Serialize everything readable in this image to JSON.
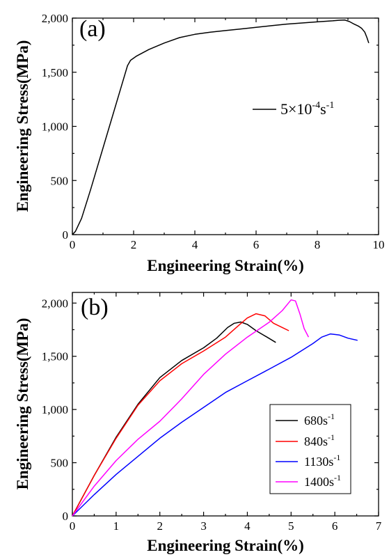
{
  "chart_data": [
    {
      "type": "line",
      "panel_label": "(a)",
      "xlabel": "Engineering Strain(%)",
      "ylabel": "Engineering Stress(MPa)",
      "xlim": [
        0,
        10
      ],
      "ylim": [
        0,
        2000
      ],
      "xticks": [
        "0",
        "2",
        "4",
        "6",
        "8",
        "10"
      ],
      "yticks": [
        "0",
        "500",
        "1,000",
        "1,500",
        "2,000"
      ],
      "legend_position": "middle-right",
      "grid": false,
      "series": [
        {
          "name_main": "5×10",
          "name_sup": "-4",
          "name_tail": "s",
          "name_sup2": "-1",
          "color": "#000000",
          "x": [
            0,
            0.1,
            0.3,
            0.6,
            1.0,
            1.4,
            1.8,
            1.9,
            2.1,
            2.5,
            3.0,
            3.5,
            4.0,
            4.5,
            5.0,
            5.5,
            6.0,
            6.5,
            7.0,
            7.5,
            8.0,
            8.5,
            8.7,
            8.9,
            9.05,
            9.2,
            9.35,
            9.45,
            9.55,
            9.62,
            9.68
          ],
          "y": [
            0,
            30,
            150,
            420,
            800,
            1180,
            1560,
            1610,
            1650,
            1710,
            1770,
            1820,
            1850,
            1870,
            1885,
            1900,
            1915,
            1930,
            1945,
            1955,
            1965,
            1975,
            1980,
            1982,
            1968,
            1945,
            1925,
            1905,
            1870,
            1820,
            1770
          ]
        }
      ]
    },
    {
      "type": "line",
      "panel_label": "(b)",
      "xlabel": "Engineering Strain(%)",
      "ylabel": "Engineering Stress(MPa)",
      "xlim": [
        0,
        7
      ],
      "ylim": [
        0,
        2100
      ],
      "xticks": [
        "0",
        "1",
        "2",
        "3",
        "4",
        "5",
        "6",
        "7"
      ],
      "yticks": [
        "0",
        "500",
        "1,000",
        "1,500",
        "2,000"
      ],
      "legend_position": "bottom-right",
      "grid": false,
      "series": [
        {
          "name_main": "680s",
          "name_sup": "-1",
          "color": "#000000",
          "x": [
            0,
            0.5,
            1.0,
            1.5,
            2.0,
            2.5,
            3.0,
            3.3,
            3.55,
            3.7,
            3.85,
            4.0,
            4.2,
            4.45,
            4.65
          ],
          "y": [
            0,
            380,
            740,
            1050,
            1300,
            1460,
            1580,
            1670,
            1770,
            1810,
            1822,
            1800,
            1740,
            1680,
            1630
          ]
        },
        {
          "name_main": "840s",
          "name_sup": "-1",
          "color": "#ff0000",
          "x": [
            0,
            0.5,
            1.0,
            1.5,
            2.0,
            2.5,
            3.0,
            3.5,
            3.8,
            4.0,
            4.2,
            4.4,
            4.6,
            4.8,
            4.95
          ],
          "y": [
            0,
            380,
            730,
            1040,
            1270,
            1430,
            1550,
            1680,
            1790,
            1860,
            1900,
            1880,
            1810,
            1770,
            1740
          ]
        },
        {
          "name_main": "1130s",
          "name_sup": "-1",
          "color": "#0000ff",
          "x": [
            0,
            0.5,
            1.0,
            1.5,
            2.0,
            2.5,
            3.0,
            3.5,
            4.0,
            4.5,
            5.0,
            5.5,
            5.7,
            5.9,
            6.1,
            6.3,
            6.52
          ],
          "y": [
            0,
            200,
            390,
            560,
            730,
            880,
            1020,
            1160,
            1270,
            1380,
            1490,
            1620,
            1680,
            1710,
            1700,
            1670,
            1650
          ]
        },
        {
          "name_main": "1400s",
          "name_sup": "-1",
          "color": "#ff00ff",
          "x": [
            0,
            0.5,
            1.0,
            1.5,
            2.0,
            2.5,
            3.0,
            3.5,
            4.0,
            4.5,
            4.8,
            5.0,
            5.1,
            5.2,
            5.3,
            5.4
          ],
          "y": [
            0,
            280,
            520,
            720,
            890,
            1100,
            1330,
            1520,
            1680,
            1820,
            1930,
            2030,
            2020,
            1900,
            1760,
            1680
          ]
        }
      ]
    }
  ]
}
